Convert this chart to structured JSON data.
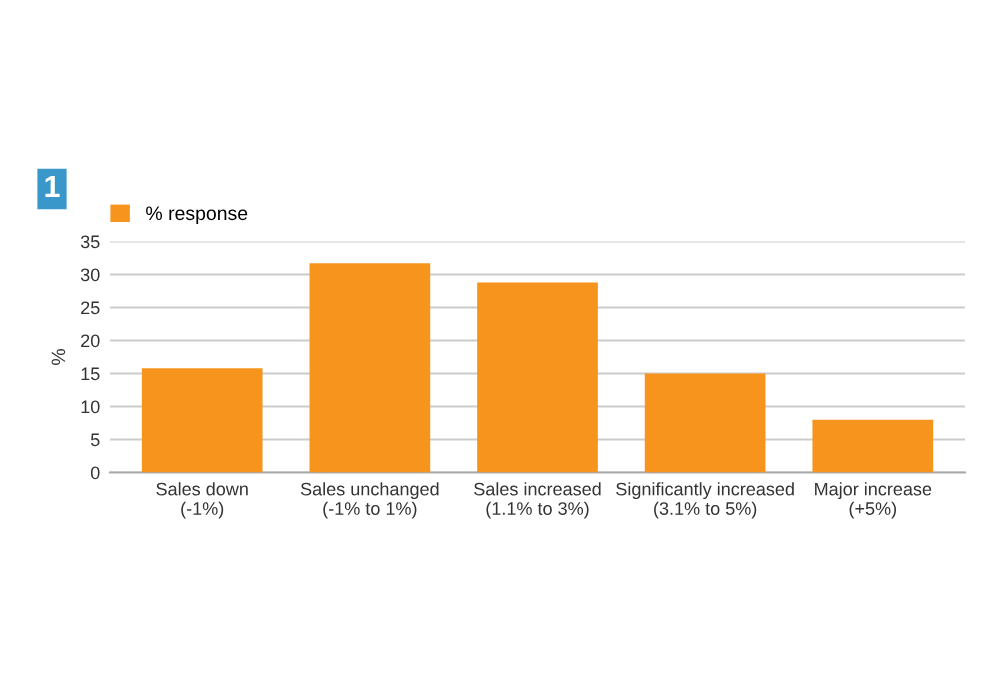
{
  "chart_data": {
    "type": "bar",
    "ylabel": "%",
    "annotations": [
      "1"
    ],
    "categories": [
      "Sales down\n(-1%)",
      "Sales unchanged\n(-1% to 1%)",
      "Sales increased\n(1.1% to 3%)",
      "Significantly increased\n(3.1% to 5%)",
      "Major increase\n(+5%)"
    ],
    "series": [
      {
        "name": "% response",
        "color": "#f7941d",
        "values": [
          15.8,
          31.7,
          28.8,
          15.0,
          8.0
        ]
      }
    ],
    "ylim": [
      0,
      35
    ],
    "yticks": [
      0,
      5,
      10,
      15,
      20,
      25,
      30,
      35
    ],
    "grid": "y",
    "legend": "top left"
  }
}
